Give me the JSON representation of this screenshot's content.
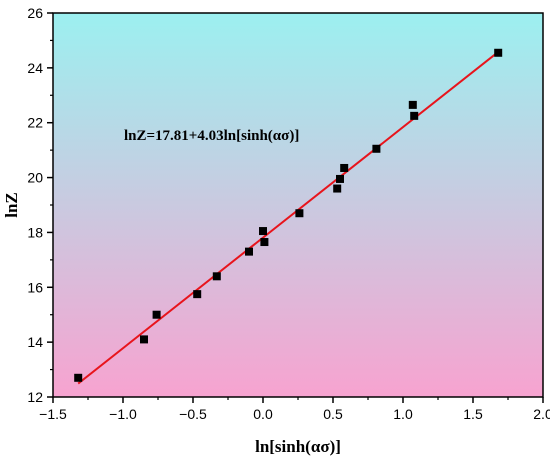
{
  "chart_data": {
    "type": "scatter",
    "xlabel": "ln[sinh(ασ)]",
    "ylabel": "lnZ",
    "xlim": [
      -1.5,
      2.0
    ],
    "ylim": [
      12,
      26
    ],
    "xticks": [
      "−1.5",
      "−1.0",
      "−0.5",
      "0.0",
      "0.5",
      "1.0",
      "1.5",
      "2.0"
    ],
    "xtick_values": [
      -1.5,
      -1.0,
      -0.5,
      0.0,
      0.5,
      1.0,
      1.5,
      2.0
    ],
    "yticks": [
      "12",
      "14",
      "16",
      "18",
      "20",
      "22",
      "24",
      "26"
    ],
    "ytick_values": [
      12,
      14,
      16,
      18,
      20,
      22,
      24,
      26
    ],
    "annotation": "lnZ=17.81+4.03ln[sinh(ασ)]",
    "points": {
      "x": [
        -1.32,
        -0.85,
        -0.76,
        -0.47,
        -0.33,
        -0.1,
        0.0,
        0.01,
        0.26,
        0.53,
        0.55,
        0.58,
        0.81,
        1.07,
        1.08,
        1.68
      ],
      "y": [
        12.7,
        14.1,
        15.0,
        15.75,
        16.4,
        17.3,
        18.05,
        17.65,
        18.7,
        19.6,
        19.95,
        20.35,
        21.05,
        22.65,
        22.25,
        24.55
      ]
    },
    "fit_line": {
      "intercept": 17.81,
      "slope": 4.03,
      "x_range": [
        -1.32,
        1.68
      ],
      "color": "#e8141c"
    },
    "background_gradient": [
      "#9cf0f0",
      "#f7a3d0"
    ],
    "marker_color": "#000000",
    "grid": false,
    "legend": "none"
  }
}
